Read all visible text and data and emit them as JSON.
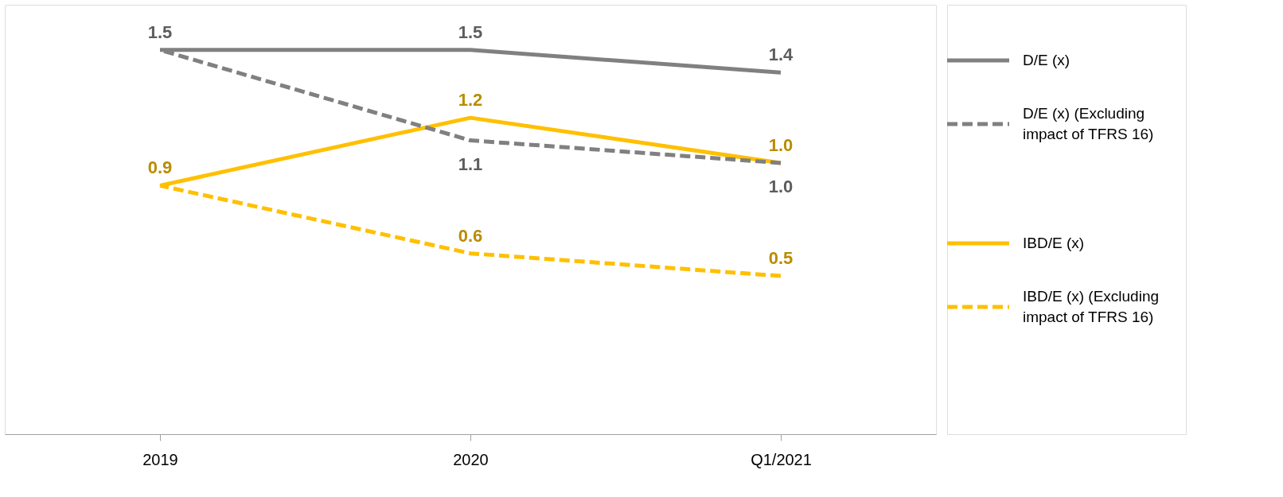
{
  "chart_data": {
    "type": "line",
    "categories": [
      "2019",
      "2020",
      "Q1/2021"
    ],
    "ylim": [
      -0.2,
      1.7
    ],
    "legend": "right",
    "grid": false,
    "series": [
      {
        "name": "D/E  (x)",
        "color": "#808080",
        "line_style": "solid",
        "values": [
          1.5,
          1.5,
          1.4
        ],
        "value_labels": [
          "1.5",
          "1.5",
          "1.4"
        ]
      },
      {
        "name": "D/E  (x) (Excluding impact of TFRS 16)",
        "color": "#808080",
        "line_style": "dashed",
        "values": [
          1.5,
          1.1,
          1.0
        ],
        "value_labels": [
          null,
          "1.1",
          "1.0"
        ]
      },
      {
        "name": "IBD/E (x)",
        "color": "#ffc000",
        "line_style": "solid",
        "values": [
          0.9,
          1.2,
          1.0
        ],
        "value_labels": [
          "0.9",
          "1.2",
          "1.0"
        ]
      },
      {
        "name": "IBD/E (x) (Excluding impact of TFRS 16)",
        "color": "#ffc000",
        "line_style": "dashed",
        "values": [
          0.9,
          0.6,
          0.5
        ],
        "value_labels": [
          null,
          "0.6",
          "0.5"
        ]
      }
    ]
  }
}
